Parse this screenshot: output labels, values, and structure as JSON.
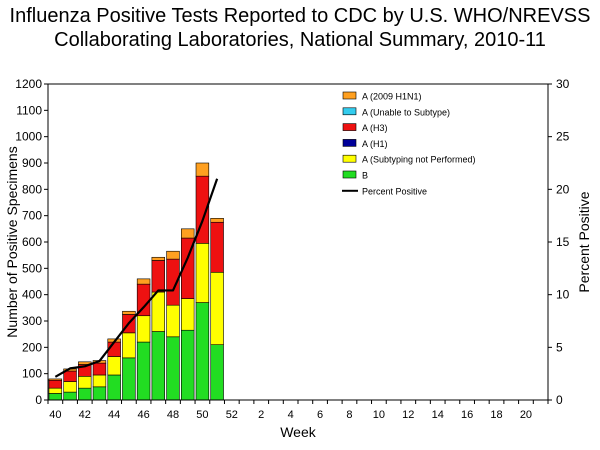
{
  "chart_data": {
    "type": "bar",
    "stacked": true,
    "title_line1": "Influenza Positive Tests Reported to CDC by U.S. WHO/NREVSS",
    "title_line2": "Collaborating Laboratories, National Summary, 2010-11",
    "xlabel": "Week",
    "ylabel": "Number of Positive Specimens",
    "y2label": "Percent Positive",
    "ylim": [
      0,
      1200
    ],
    "y2lim": [
      0,
      30
    ],
    "yticks": [
      0,
      100,
      200,
      300,
      400,
      500,
      600,
      700,
      800,
      900,
      1000,
      1100,
      1200
    ],
    "y2ticks": [
      0,
      5,
      10,
      15,
      20,
      25,
      30
    ],
    "xtick_labels": [
      "40",
      "42",
      "44",
      "46",
      "48",
      "50",
      "52",
      "2",
      "4",
      "6",
      "8",
      "10",
      "12",
      "14",
      "16",
      "18",
      "20"
    ],
    "categories": [
      "40",
      "41",
      "42",
      "43",
      "44",
      "45",
      "46",
      "47",
      "48",
      "49",
      "50",
      "51"
    ],
    "series": [
      {
        "name": "B",
        "color": "#22dd22",
        "values": [
          25,
          30,
          45,
          50,
          95,
          160,
          220,
          260,
          240,
          265,
          370,
          210
        ]
      },
      {
        "name": "A (Subtyping not Performed)",
        "color": "#ffff00",
        "values": [
          20,
          40,
          45,
          45,
          70,
          95,
          100,
          150,
          120,
          120,
          225,
          275
        ]
      },
      {
        "name": "A (H1)",
        "color": "#000099",
        "values": [
          0,
          0,
          0,
          0,
          0,
          0,
          0,
          0,
          0,
          0,
          0,
          0
        ]
      },
      {
        "name": "A (H3)",
        "color": "#ee1111",
        "values": [
          30,
          40,
          45,
          45,
          55,
          70,
          120,
          120,
          175,
          230,
          255,
          190
        ]
      },
      {
        "name": "A (Unable to Subtype)",
        "color": "#33ccee",
        "values": [
          0,
          0,
          0,
          0,
          0,
          0,
          0,
          0,
          0,
          0,
          0,
          0
        ]
      },
      {
        "name": "A (2009 H1N1)",
        "color": "#ffa020",
        "values": [
          5,
          8,
          10,
          10,
          12,
          12,
          20,
          12,
          30,
          35,
          50,
          15
        ]
      }
    ],
    "line_series": {
      "name": "Percent Positive",
      "color": "#000000",
      "values": [
        2.2,
        3.0,
        3.2,
        3.7,
        5.5,
        7.3,
        8.8,
        10.4,
        10.4,
        13.5,
        17.0,
        21.0
      ]
    },
    "legend_order": [
      "A (2009 H1N1)",
      "A (Unable to Subtype)",
      "A (H3)",
      "A (H1)",
      "A (Subtyping not Performed)",
      "B",
      "Percent Positive"
    ],
    "legend_position": "top-right",
    "grid": false
  }
}
